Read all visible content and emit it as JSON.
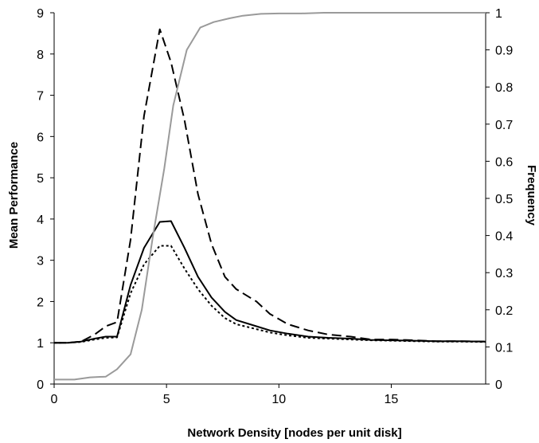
{
  "chart_data": {
    "type": "line",
    "xlabel": "Network Density [nodes per unit disk]",
    "ylabel_left": "Mean Performance",
    "ylabel_right": "Frequency",
    "xlim": [
      0,
      19.2
    ],
    "ylim_left": [
      0,
      9
    ],
    "ylim_right": [
      0,
      1
    ],
    "x_ticks": [
      0,
      5,
      10,
      15
    ],
    "y_left_ticks": [
      0,
      1,
      2,
      3,
      4,
      5,
      6,
      7,
      8,
      9
    ],
    "y_right_ticks": [
      "0",
      "0.1",
      "0.2",
      "0.3",
      "0.4",
      "0.5",
      "0.6",
      "0.7",
      "0.8",
      "0.9",
      "1"
    ],
    "grid": false,
    "legend": "none",
    "series": [
      {
        "axis": "left",
        "style": "dashed",
        "color": "#000000",
        "points": [
          [
            0,
            1
          ],
          [
            0.6,
            1.0
          ],
          [
            1.2,
            1.03
          ],
          [
            1.8,
            1.2
          ],
          [
            2.3,
            1.4
          ],
          [
            2.8,
            1.5
          ],
          [
            3.4,
            3.5
          ],
          [
            4.0,
            6.5
          ],
          [
            4.7,
            8.6
          ],
          [
            5.2,
            7.8
          ],
          [
            5.8,
            6.4
          ],
          [
            6.4,
            4.6
          ],
          [
            7.0,
            3.4
          ],
          [
            7.6,
            2.6
          ],
          [
            8.1,
            2.3
          ],
          [
            9.0,
            2.0
          ],
          [
            9.6,
            1.7
          ],
          [
            10.4,
            1.45
          ],
          [
            11.3,
            1.3
          ],
          [
            12.2,
            1.2
          ],
          [
            13.2,
            1.15
          ],
          [
            14.1,
            1.08
          ],
          [
            15.0,
            1.08
          ],
          [
            16.0,
            1.06
          ],
          [
            17.0,
            1.04
          ],
          [
            18.0,
            1.04
          ],
          [
            19.2,
            1.03
          ]
        ]
      },
      {
        "axis": "left",
        "style": "solid",
        "color": "#000000",
        "points": [
          [
            0,
            1
          ],
          [
            0.6,
            1.0
          ],
          [
            1.2,
            1.03
          ],
          [
            1.8,
            1.1
          ],
          [
            2.3,
            1.15
          ],
          [
            2.8,
            1.15
          ],
          [
            3.4,
            2.4
          ],
          [
            4.0,
            3.3
          ],
          [
            4.7,
            3.93
          ],
          [
            5.2,
            3.95
          ],
          [
            5.8,
            3.3
          ],
          [
            6.4,
            2.6
          ],
          [
            7.0,
            2.1
          ],
          [
            7.6,
            1.75
          ],
          [
            8.1,
            1.55
          ],
          [
            9.0,
            1.4
          ],
          [
            9.6,
            1.3
          ],
          [
            10.4,
            1.22
          ],
          [
            11.3,
            1.15
          ],
          [
            12.2,
            1.12
          ],
          [
            13.2,
            1.1
          ],
          [
            14.1,
            1.07
          ],
          [
            15.0,
            1.06
          ],
          [
            16.0,
            1.05
          ],
          [
            17.0,
            1.04
          ],
          [
            18.0,
            1.04
          ],
          [
            19.2,
            1.03
          ]
        ]
      },
      {
        "axis": "left",
        "style": "dotted",
        "color": "#000000",
        "points": [
          [
            0,
            1
          ],
          [
            0.6,
            1.0
          ],
          [
            1.2,
            1.02
          ],
          [
            1.8,
            1.08
          ],
          [
            2.3,
            1.12
          ],
          [
            2.8,
            1.13
          ],
          [
            3.4,
            2.2
          ],
          [
            4.0,
            2.9
          ],
          [
            4.7,
            3.35
          ],
          [
            5.2,
            3.35
          ],
          [
            5.8,
            2.8
          ],
          [
            6.4,
            2.3
          ],
          [
            7.0,
            1.9
          ],
          [
            7.6,
            1.6
          ],
          [
            8.1,
            1.45
          ],
          [
            9.0,
            1.33
          ],
          [
            9.6,
            1.25
          ],
          [
            10.4,
            1.18
          ],
          [
            11.3,
            1.12
          ],
          [
            12.2,
            1.1
          ],
          [
            13.2,
            1.08
          ],
          [
            14.1,
            1.06
          ],
          [
            15.0,
            1.05
          ],
          [
            16.0,
            1.04
          ],
          [
            17.0,
            1.03
          ],
          [
            18.0,
            1.03
          ],
          [
            19.2,
            1.02
          ]
        ]
      },
      {
        "axis": "right",
        "style": "solid",
        "color": "#9a9a9a",
        "points": [
          [
            0,
            0.012
          ],
          [
            0.9,
            0.012
          ],
          [
            1.6,
            0.018
          ],
          [
            2.3,
            0.02
          ],
          [
            2.8,
            0.04
          ],
          [
            3.4,
            0.08
          ],
          [
            3.9,
            0.2
          ],
          [
            4.4,
            0.4
          ],
          [
            4.9,
            0.58
          ],
          [
            5.3,
            0.75
          ],
          [
            5.9,
            0.9
          ],
          [
            6.5,
            0.96
          ],
          [
            7.1,
            0.975
          ],
          [
            7.8,
            0.985
          ],
          [
            8.4,
            0.992
          ],
          [
            9.2,
            0.997
          ],
          [
            10.0,
            0.998
          ],
          [
            11.0,
            0.998
          ],
          [
            12.0,
            1.0
          ],
          [
            14.0,
            1.0
          ],
          [
            16.0,
            1.0
          ],
          [
            19.2,
            1.0
          ]
        ]
      }
    ]
  }
}
